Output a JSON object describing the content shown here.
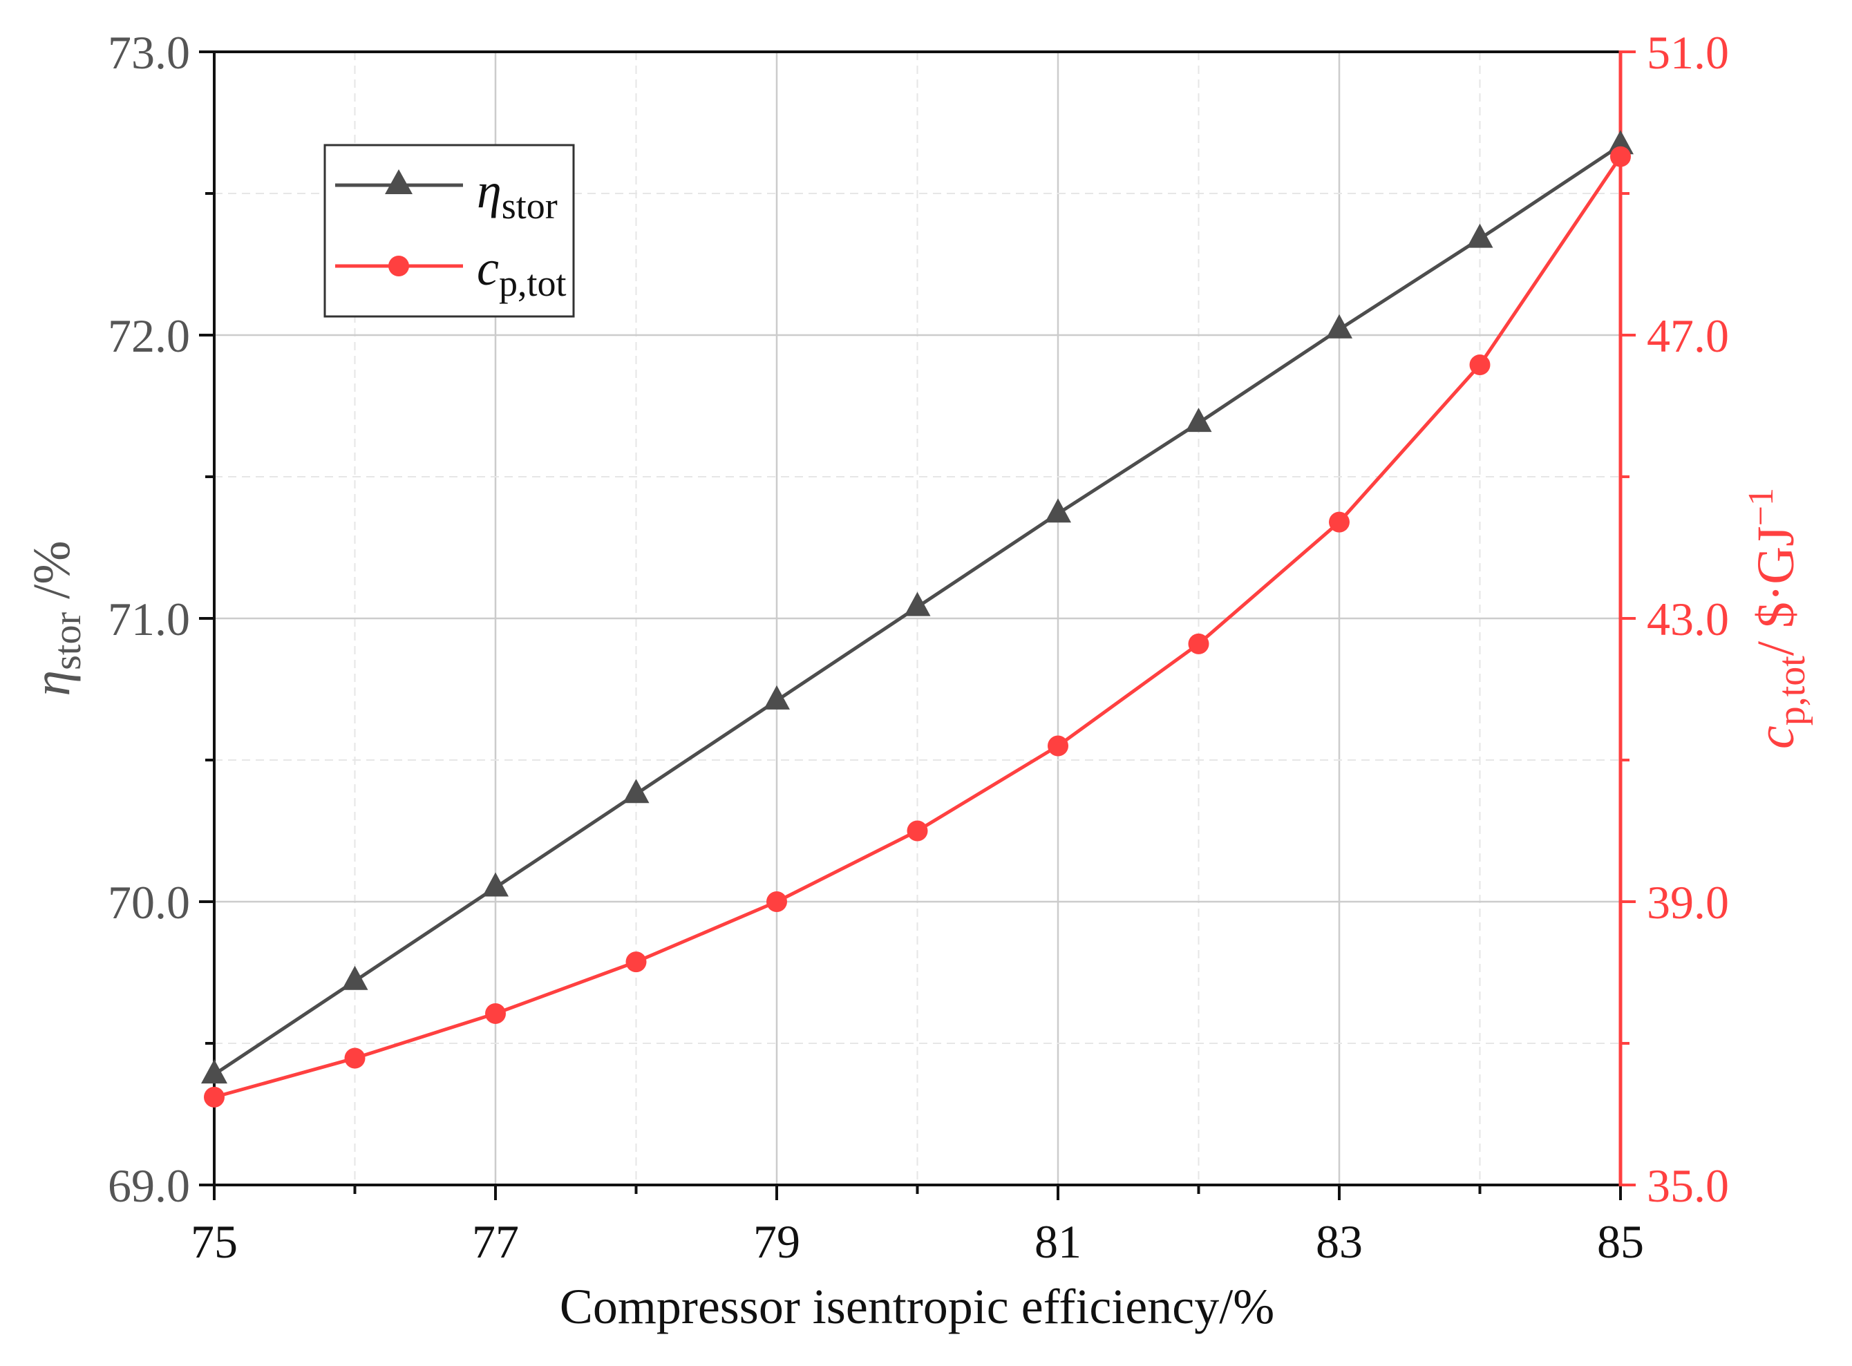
{
  "chart_data": {
    "type": "line",
    "xlabel": "Compressor isentropic efficiency/%",
    "x_ticks": [
      "75",
      "77",
      "79",
      "81",
      "83",
      "85"
    ],
    "xlim": [
      75,
      85
    ],
    "y_left": {
      "label_main": "η",
      "label_sub": "stor",
      "label_unit": " /%",
      "ylim": [
        69.0,
        73.0
      ],
      "ticks": [
        "69.0",
        "70.0",
        "71.0",
        "72.0",
        "73.0"
      ],
      "color": "#4d4d4d"
    },
    "y_right": {
      "label_main": "c",
      "label_sub": "p,tot",
      "label_unit": "/ $·GJ",
      "label_sup": "−1",
      "ylim": [
        35.0,
        51.0
      ],
      "ticks": [
        "35.0",
        "39.0",
        "43.0",
        "47.0",
        "51.0"
      ],
      "color": "#ff4040"
    },
    "x": [
      75,
      76,
      77,
      78,
      79,
      80,
      81,
      82,
      83,
      84,
      85
    ],
    "series": [
      {
        "name": "η_stor",
        "legend_main": "η",
        "legend_sub": "stor",
        "axis": "left",
        "marker": "triangle",
        "color": "#4d4d4d",
        "values": [
          69.39,
          69.72,
          70.05,
          70.38,
          70.71,
          71.04,
          71.37,
          71.69,
          72.02,
          72.34,
          72.67
        ]
      },
      {
        "name": "c_p,tot",
        "legend_main": "c",
        "legend_sub": "p,tot",
        "axis": "right",
        "marker": "circle",
        "color": "#ff4040",
        "values": [
          36.24,
          36.79,
          37.42,
          38.15,
          39.0,
          40.0,
          41.2,
          42.64,
          44.36,
          46.58,
          49.52
        ]
      }
    ],
    "grid": true,
    "legend_position": "top-left"
  }
}
